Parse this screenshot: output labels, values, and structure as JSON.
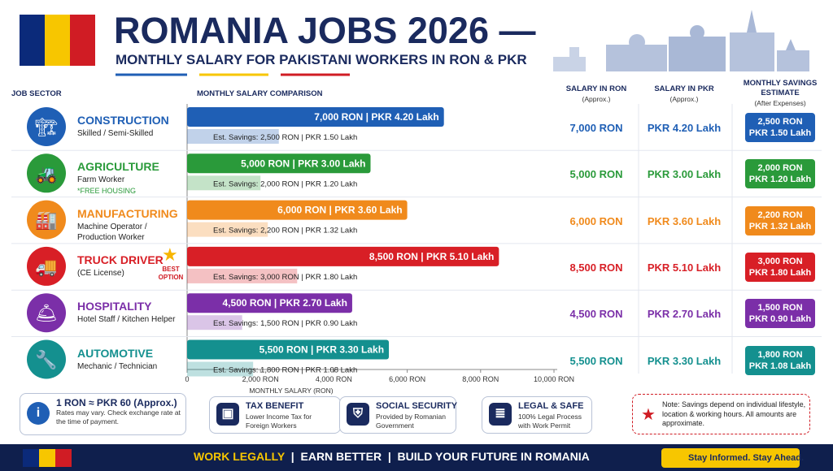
{
  "header": {
    "title": "ROMANIA JOBS 2026 —",
    "subtitle": "MONTHLY SALARY FOR PAKISTANI WORKERS IN RON & PKR"
  },
  "columns": {
    "sector": "JOB SECTOR",
    "chart": "MONTHLY SALARY COMPARISON",
    "ron": "SALARY IN RON",
    "ron_note": "(Approx.)",
    "pkr": "SALARY IN PKR",
    "pkr_note": "(Approx.)",
    "savings": "MONTHLY SAVINGS ESTIMATE",
    "savings_note": "(After Expenses)"
  },
  "sectors": [
    {
      "detail": "Skilled / Semi-Skilled"
    },
    {
      "detail": "Farm Worker",
      "note": "*FREE HOUSING"
    },
    {
      "detail": "Machine Operator / Production Worker"
    },
    {
      "detail": "(CE License)",
      "badge": "BEST OPTION"
    },
    {
      "detail": "Hotel Staff / Kitchen Helper"
    },
    {
      "detail": "Mechanic / Technician"
    }
  ],
  "chart_data": {
    "type": "bar",
    "orientation": "horizontal",
    "categories": [
      "CONSTRUCTION",
      "AGRICULTURE",
      "MANUFACTURING",
      "TRUCK DRIVER",
      "HOSPITALITY",
      "AUTOMOTIVE"
    ],
    "colors": [
      "#1f5fb5",
      "#2a9a3a",
      "#f08a1c",
      "#d81f26",
      "#7b2fa8",
      "#14908f"
    ],
    "series": [
      {
        "name": "Monthly salary",
        "values": [
          7000,
          5000,
          6000,
          8500,
          4500,
          5500
        ],
        "value_labels": [
          "7,000 RON | PKR 4.20 Lakh",
          "5,000 RON | PKR 3.00 Lakh",
          "6,000 RON | PKR 3.60 Lakh",
          "8,500 RON | PKR 5.10 Lakh",
          "4,500 RON | PKR 2.70 Lakh",
          "5,500 RON | PKR 3.30 Lakh"
        ]
      },
      {
        "name": "Est. savings",
        "values": [
          2500,
          2000,
          2200,
          3000,
          1500,
          1800
        ],
        "value_labels": [
          "Est. Savings: 2,500 RON | PKR 1.50 Lakh",
          "Est. Savings: 2,000 RON | PKR 1.20 Lakh",
          "Est. Savings: 2,200 RON | PKR 1.32 Lakh",
          "Est. Savings: 3,000 RON | PKR 1.80 Lakh",
          "Est. Savings: 1,500 RON | PKR 0.90 Lakh",
          "Est. Savings: 1,800 RON | PKR 1.08 Lakh"
        ]
      }
    ],
    "xlim": [
      0,
      10000
    ],
    "xticks": [
      0,
      {
        "value": 2000,
        "label": "2,000 RON"
      },
      {
        "value": 4000,
        "label": "4,000 RON"
      },
      {
        "value": 6000,
        "label": "6,000 RON"
      },
      {
        "value": 8000,
        "label": "8,000 RON"
      },
      {
        "value": 10000,
        "label": "10,000 RON"
      }
    ],
    "xlabel": "MONTHLY SALARY (RON)",
    "grid": false
  },
  "table": {
    "rows": [
      [
        "7,000 RON",
        "PKR 4.20 Lakh",
        "2,500 RON",
        "PKR 1.50 Lakh"
      ],
      [
        "5,000 RON",
        "PKR 3.00 Lakh",
        "2,000 RON",
        "PKR 1.20 Lakh"
      ],
      [
        "6,000 RON",
        "PKR 3.60 Lakh",
        "2,200 RON",
        "PKR 1.32 Lakh"
      ],
      [
        "8,500 RON",
        "PKR 5.10 Lakh",
        "3,000 RON",
        "PKR 1.80 Lakh"
      ],
      [
        "4,500 RON",
        "PKR 2.70 Lakh",
        "1,500 RON",
        "PKR 0.90 Lakh"
      ],
      [
        "5,500 RON",
        "PKR 3.30 Lakh",
        "1,800 RON",
        "PKR 1.08 Lakh"
      ]
    ]
  },
  "info": [
    {
      "title": "1 RON ≈ PKR 60 (Approx.)",
      "text": "Rates may vary. Check exchange rate at the time of payment."
    },
    {
      "title": "TAX BENEFIT",
      "text": "Lower Income Tax for Foreign Workers"
    },
    {
      "title": "SOCIAL SECURITY",
      "text": "Provided by Romanian Government"
    },
    {
      "title": "LEGAL & SAFE",
      "text": "100% Legal Process with Work Permit"
    }
  ],
  "note": "Note: Savings depend on individual lifestyle, location & working hours. All amounts are approximate.",
  "footer": {
    "slogans": [
      "WORK LEGALLY",
      "EARN BETTER",
      "BUILD YOUR FUTURE IN ROMANIA"
    ],
    "button": "Stay Informed. Stay Ahead."
  }
}
